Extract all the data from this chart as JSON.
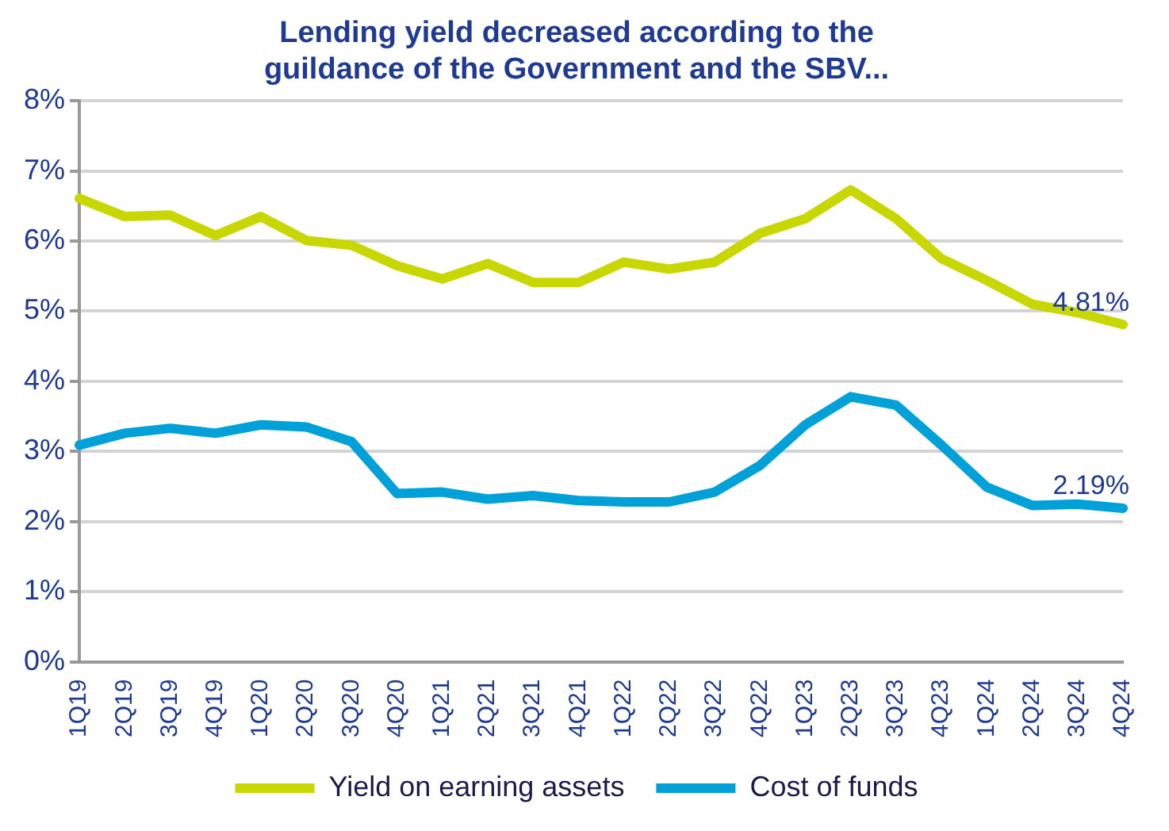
{
  "chart_data": {
    "type": "line",
    "title": "Lending yield decreased according to the guildance of the Government and the SBV...",
    "categories": [
      "1Q19",
      "2Q19",
      "3Q19",
      "4Q19",
      "1Q20",
      "2Q20",
      "3Q20",
      "4Q20",
      "1Q21",
      "2Q21",
      "3Q21",
      "4Q21",
      "1Q22",
      "2Q22",
      "3Q22",
      "4Q22",
      "1Q23",
      "2Q23",
      "3Q23",
      "4Q23",
      "1Q24",
      "2Q24",
      "3Q24",
      "4Q24"
    ],
    "series": [
      {
        "name": "Yield on earning assets",
        "color": "#c9d700",
        "values": [
          6.61,
          6.35,
          6.37,
          6.08,
          6.35,
          6.01,
          5.94,
          5.65,
          5.46,
          5.68,
          5.41,
          5.41,
          5.7,
          5.6,
          5.7,
          6.11,
          6.32,
          6.73,
          6.32,
          5.75,
          5.44,
          5.1,
          4.98,
          4.81
        ],
        "value_labels": [
          null,
          null,
          null,
          null,
          null,
          null,
          null,
          null,
          null,
          null,
          null,
          null,
          null,
          null,
          null,
          null,
          null,
          null,
          null,
          null,
          null,
          null,
          null,
          "4.81%"
        ]
      },
      {
        "name": "Cost of funds",
        "color": "#00a0d8",
        "values": [
          3.09,
          3.26,
          3.33,
          3.26,
          3.38,
          3.35,
          3.14,
          2.4,
          2.42,
          2.32,
          2.37,
          2.3,
          2.28,
          2.28,
          2.42,
          2.8,
          3.38,
          3.78,
          3.66,
          3.09,
          2.49,
          2.23,
          2.25,
          2.19
        ],
        "value_labels": [
          null,
          null,
          null,
          null,
          null,
          null,
          null,
          null,
          null,
          null,
          null,
          null,
          null,
          null,
          null,
          null,
          null,
          null,
          null,
          null,
          null,
          null,
          null,
          "2.19%"
        ]
      }
    ],
    "ylim": [
      0,
      8
    ],
    "yticks": [
      {
        "value": 0,
        "label": "0%"
      },
      {
        "value": 1,
        "label": "1%"
      },
      {
        "value": 2,
        "label": "2%"
      },
      {
        "value": 3,
        "label": "3%"
      },
      {
        "value": 4,
        "label": "4%"
      },
      {
        "value": 5,
        "label": "5%"
      },
      {
        "value": 6,
        "label": "6%"
      },
      {
        "value": 7,
        "label": "7%"
      },
      {
        "value": 8,
        "label": "8%"
      }
    ],
    "grid": "y",
    "legend": "bottom",
    "marker": "none",
    "line_style": "solid"
  }
}
